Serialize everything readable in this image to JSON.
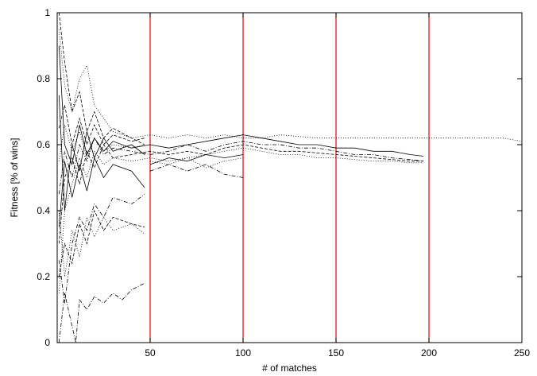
{
  "chart_data": {
    "type": "line",
    "xlabel": "# of matches",
    "ylabel": "Fitness [% of wins]",
    "xlim": [
      0,
      250
    ],
    "ylim": [
      0,
      1
    ],
    "xticks": [
      50,
      100,
      150,
      200,
      250
    ],
    "yticks": [
      0,
      0.2,
      0.4,
      0.6,
      0.8,
      1
    ],
    "grid": false,
    "legend": "none",
    "vertical_markers": {
      "x": [
        50,
        100,
        150,
        200
      ],
      "color": "#e00000"
    },
    "series": [
      {
        "style": "dotted",
        "points": [
          [
            1,
            0.95
          ],
          [
            4,
            0.78
          ],
          [
            8,
            0.7
          ],
          [
            12,
            0.8
          ],
          [
            16,
            0.84
          ],
          [
            20,
            0.72
          ],
          [
            25,
            0.68
          ],
          [
            30,
            0.64
          ],
          [
            40,
            0.62
          ],
          [
            50,
            0.63
          ],
          [
            60,
            0.62
          ],
          [
            70,
            0.63
          ],
          [
            80,
            0.62
          ],
          [
            90,
            0.63
          ],
          [
            100,
            0.62
          ],
          [
            110,
            0.62
          ],
          [
            120,
            0.63
          ],
          [
            140,
            0.62
          ],
          [
            160,
            0.62
          ],
          [
            180,
            0.62
          ],
          [
            200,
            0.62
          ],
          [
            220,
            0.62
          ],
          [
            240,
            0.62
          ],
          [
            250,
            0.61
          ]
        ]
      },
      {
        "style": "solid",
        "points": [
          [
            1,
            0.9
          ],
          [
            4,
            0.6
          ],
          [
            8,
            0.54
          ],
          [
            12,
            0.66
          ],
          [
            16,
            0.57
          ],
          [
            20,
            0.62
          ],
          [
            25,
            0.58
          ],
          [
            30,
            0.61
          ],
          [
            40,
            0.59
          ],
          [
            50,
            0.6
          ],
          [
            60,
            0.59
          ],
          [
            70,
            0.6
          ],
          [
            80,
            0.61
          ],
          [
            90,
            0.62
          ],
          [
            100,
            0.63
          ],
          [
            110,
            0.62
          ],
          [
            120,
            0.61
          ],
          [
            130,
            0.6
          ],
          [
            140,
            0.6
          ],
          [
            150,
            0.59
          ],
          [
            160,
            0.59
          ],
          [
            170,
            0.58
          ],
          [
            180,
            0.58
          ],
          [
            190,
            0.57
          ],
          [
            197,
            0.565
          ]
        ]
      },
      {
        "style": "dashdot",
        "points": [
          [
            1,
            0.45
          ],
          [
            4,
            0.58
          ],
          [
            8,
            0.5
          ],
          [
            12,
            0.6
          ],
          [
            16,
            0.55
          ],
          [
            20,
            0.62
          ],
          [
            25,
            0.57
          ],
          [
            30,
            0.59
          ],
          [
            40,
            0.58
          ],
          [
            50,
            0.57
          ],
          [
            60,
            0.58
          ],
          [
            70,
            0.6
          ],
          [
            80,
            0.58
          ],
          [
            90,
            0.6
          ],
          [
            100,
            0.61
          ],
          [
            110,
            0.6
          ],
          [
            120,
            0.6
          ],
          [
            130,
            0.59
          ],
          [
            140,
            0.59
          ],
          [
            150,
            0.58
          ],
          [
            160,
            0.57
          ],
          [
            170,
            0.57
          ],
          [
            180,
            0.56
          ],
          [
            190,
            0.555
          ],
          [
            197,
            0.55
          ]
        ]
      },
      {
        "style": "dashed",
        "points": [
          [
            1,
            0.3
          ],
          [
            4,
            0.5
          ],
          [
            8,
            0.56
          ],
          [
            12,
            0.48
          ],
          [
            16,
            0.58
          ],
          [
            20,
            0.53
          ],
          [
            25,
            0.6
          ],
          [
            30,
            0.56
          ],
          [
            40,
            0.57
          ],
          [
            50,
            0.58
          ],
          [
            60,
            0.57
          ],
          [
            70,
            0.58
          ],
          [
            80,
            0.57
          ],
          [
            90,
            0.59
          ],
          [
            100,
            0.6
          ],
          [
            110,
            0.59
          ],
          [
            120,
            0.58
          ],
          [
            130,
            0.58
          ],
          [
            140,
            0.575
          ],
          [
            150,
            0.57
          ],
          [
            160,
            0.565
          ],
          [
            170,
            0.56
          ],
          [
            180,
            0.555
          ],
          [
            190,
            0.55
          ],
          [
            197,
            0.55
          ]
        ]
      },
      {
        "style": "dotted",
        "points": [
          [
            1,
            0.15
          ],
          [
            4,
            0.4
          ],
          [
            8,
            0.48
          ],
          [
            12,
            0.56
          ],
          [
            16,
            0.5
          ],
          [
            20,
            0.58
          ],
          [
            25,
            0.54
          ],
          [
            30,
            0.56
          ],
          [
            40,
            0.55
          ],
          [
            50,
            0.56
          ],
          [
            60,
            0.55
          ],
          [
            70,
            0.56
          ],
          [
            80,
            0.57
          ],
          [
            90,
            0.58
          ],
          [
            100,
            0.59
          ],
          [
            110,
            0.58
          ],
          [
            120,
            0.57
          ],
          [
            130,
            0.57
          ],
          [
            140,
            0.56
          ],
          [
            150,
            0.56
          ],
          [
            160,
            0.555
          ],
          [
            170,
            0.55
          ],
          [
            180,
            0.55
          ],
          [
            190,
            0.545
          ],
          [
            197,
            0.545
          ]
        ]
      },
      {
        "style": "solid",
        "points": [
          [
            1,
            0.75
          ],
          [
            4,
            0.4
          ],
          [
            8,
            0.6
          ],
          [
            12,
            0.52
          ],
          [
            16,
            0.64
          ],
          [
            20,
            0.56
          ],
          [
            25,
            0.62
          ],
          [
            30,
            0.58
          ],
          [
            40,
            0.6
          ],
          [
            47,
            0.57
          ]
        ]
      },
      {
        "style": "dashed",
        "points": [
          [
            1,
            0.65
          ],
          [
            4,
            0.72
          ],
          [
            8,
            0.6
          ],
          [
            12,
            0.68
          ],
          [
            16,
            0.6
          ],
          [
            20,
            0.66
          ],
          [
            25,
            0.6
          ],
          [
            30,
            0.63
          ],
          [
            40,
            0.61
          ],
          [
            47,
            0.62
          ]
        ]
      },
      {
        "style": "dotted",
        "points": [
          [
            1,
            0.55
          ],
          [
            4,
            0.66
          ],
          [
            8,
            0.58
          ],
          [
            12,
            0.64
          ],
          [
            16,
            0.56
          ],
          [
            20,
            0.62
          ],
          [
            25,
            0.58
          ],
          [
            30,
            0.6
          ],
          [
            40,
            0.59
          ],
          [
            47,
            0.6
          ]
        ]
      },
      {
        "style": "solid",
        "points": [
          [
            1,
            0.35
          ],
          [
            4,
            0.55
          ],
          [
            8,
            0.44
          ],
          [
            12,
            0.54
          ],
          [
            16,
            0.46
          ],
          [
            20,
            0.56
          ],
          [
            25,
            0.5
          ],
          [
            30,
            0.54
          ],
          [
            40,
            0.52
          ],
          [
            47,
            0.47
          ]
        ]
      },
      {
        "style": "dashdot",
        "points": [
          [
            1,
            0.25
          ],
          [
            4,
            0.12
          ],
          [
            8,
            0.3
          ],
          [
            12,
            0.38
          ],
          [
            16,
            0.34
          ],
          [
            20,
            0.42
          ],
          [
            25,
            0.38
          ],
          [
            30,
            0.44
          ],
          [
            40,
            0.42
          ],
          [
            47,
            0.45
          ]
        ]
      },
      {
        "style": "dashed",
        "points": [
          [
            1,
            0.2
          ],
          [
            4,
            0.3
          ],
          [
            8,
            0.24
          ],
          [
            12,
            0.36
          ],
          [
            16,
            0.3
          ],
          [
            20,
            0.4
          ],
          [
            25,
            0.34
          ],
          [
            30,
            0.38
          ],
          [
            40,
            0.36
          ],
          [
            47,
            0.35
          ]
        ]
      },
      {
        "style": "dotted",
        "points": [
          [
            1,
            0.4
          ],
          [
            4,
            0.2
          ],
          [
            8,
            0.34
          ],
          [
            12,
            0.26
          ],
          [
            16,
            0.38
          ],
          [
            20,
            0.32
          ],
          [
            25,
            0.38
          ],
          [
            30,
            0.34
          ],
          [
            40,
            0.36
          ],
          [
            47,
            0.33
          ]
        ]
      },
      {
        "style": "dashdot",
        "points": [
          [
            1,
            0.0
          ],
          [
            4,
            0.15
          ],
          [
            8,
            0.05
          ],
          [
            10,
            0.0
          ],
          [
            12,
            0.13
          ],
          [
            16,
            0.1
          ],
          [
            20,
            0.14
          ],
          [
            25,
            0.12
          ],
          [
            30,
            0.15
          ],
          [
            35,
            0.13
          ],
          [
            40,
            0.16
          ],
          [
            47,
            0.18
          ]
        ]
      },
      {
        "style": "dashed",
        "points": [
          [
            1,
            1.0
          ],
          [
            4,
            0.85
          ],
          [
            8,
            0.7
          ],
          [
            12,
            0.76
          ],
          [
            16,
            0.64
          ],
          [
            20,
            0.7
          ],
          [
            25,
            0.62
          ],
          [
            30,
            0.65
          ],
          [
            40,
            0.62
          ],
          [
            47,
            0.6
          ]
        ]
      },
      {
        "style": "dotted",
        "points": [
          [
            50,
            0.55
          ],
          [
            60,
            0.54
          ],
          [
            70,
            0.56
          ],
          [
            80,
            0.53
          ],
          [
            90,
            0.55
          ],
          [
            100,
            0.56
          ]
        ]
      },
      {
        "style": "dashdot",
        "points": [
          [
            50,
            0.52
          ],
          [
            60,
            0.54
          ],
          [
            70,
            0.52
          ],
          [
            80,
            0.54
          ],
          [
            90,
            0.51
          ],
          [
            100,
            0.5
          ]
        ]
      },
      {
        "style": "solid",
        "points": [
          [
            50,
            0.54
          ],
          [
            60,
            0.56
          ],
          [
            70,
            0.55
          ],
          [
            80,
            0.57
          ],
          [
            90,
            0.56
          ],
          [
            100,
            0.57
          ]
        ]
      }
    ]
  }
}
